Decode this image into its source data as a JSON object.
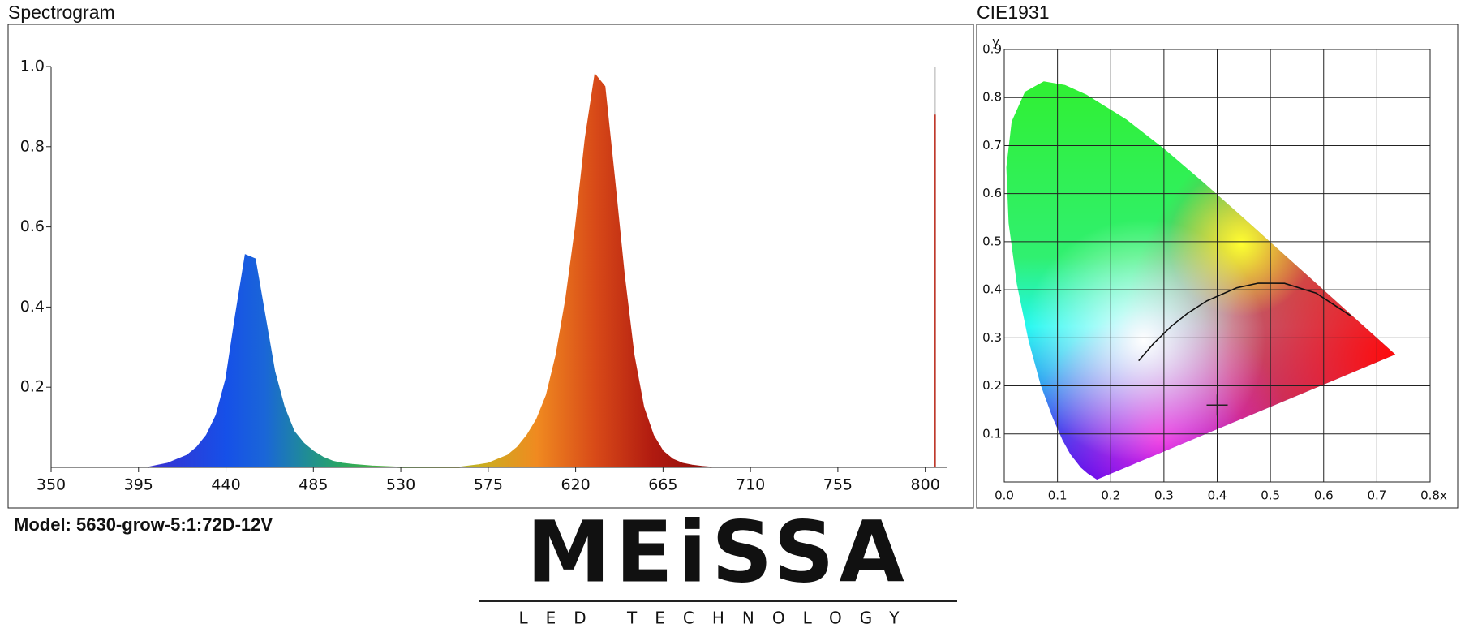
{
  "chart_data": [
    {
      "type": "area",
      "title": "Spectrogram",
      "x": [
        400,
        405,
        410,
        415,
        420,
        425,
        430,
        435,
        440,
        445,
        450,
        455,
        460,
        465,
        470,
        475,
        480,
        485,
        490,
        495,
        500,
        505,
        510,
        515,
        520,
        525,
        530,
        535,
        540,
        545,
        550,
        555,
        560,
        565,
        570,
        575,
        580,
        585,
        590,
        595,
        600,
        605,
        610,
        615,
        620,
        625,
        630,
        635,
        640,
        645,
        650,
        655,
        660,
        665,
        670,
        675,
        680,
        685,
        690
      ],
      "values": [
        0,
        0.005,
        0.01,
        0.02,
        0.03,
        0.05,
        0.08,
        0.13,
        0.22,
        0.38,
        0.53,
        0.52,
        0.38,
        0.24,
        0.15,
        0.09,
        0.06,
        0.04,
        0.025,
        0.015,
        0.01,
        0.007,
        0.005,
        0.003,
        0.002,
        0.001,
        0,
        0,
        0,
        0,
        0,
        0,
        0,
        0.003,
        0.006,
        0.01,
        0.02,
        0.03,
        0.05,
        0.08,
        0.12,
        0.18,
        0.28,
        0.42,
        0.6,
        0.82,
        0.98,
        0.95,
        0.72,
        0.48,
        0.28,
        0.15,
        0.08,
        0.04,
        0.02,
        0.01,
        0.005,
        0.002,
        0
      ],
      "marker_x": 805,
      "marker_value": 0.88,
      "xlim": [
        350,
        811
      ],
      "ylim": [
        0,
        1
      ],
      "xticks": [
        350,
        395,
        440,
        485,
        530,
        575,
        620,
        665,
        710,
        755,
        800
      ],
      "yticks": [
        0.2,
        0.4,
        0.6,
        0.8,
        {
          "value": 1,
          "label": "1.0"
        }
      ]
    },
    {
      "type": "cie",
      "title": "CIE1931",
      "x_label": "x",
      "y_label": "y",
      "x": [
        0.4
      ],
      "values": [
        0.16
      ],
      "xlim": [
        0,
        0.8
      ],
      "ylim": [
        0,
        0.9
      ],
      "xticks": [
        {
          "value": 0,
          "label": "0.0"
        },
        0.1,
        0.2,
        0.3,
        0.4,
        0.5,
        0.6,
        0.7,
        0.8
      ],
      "yticks": [
        0.1,
        0.2,
        0.3,
        0.4,
        0.5,
        0.6,
        0.7,
        0.8,
        0.9
      ],
      "grid": true
    }
  ],
  "model": "Model: 5630-grow-5:1:72D-12V",
  "logo": {
    "name": "MEiSSA",
    "tagline": "LED TECHNOLOGY"
  }
}
